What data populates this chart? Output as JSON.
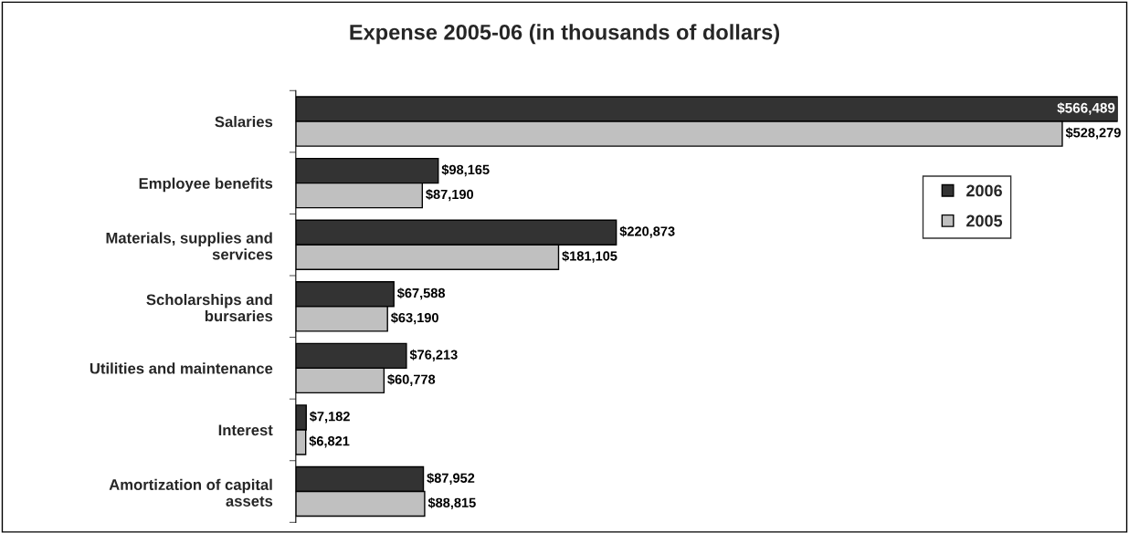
{
  "chart_data": {
    "type": "bar",
    "orientation": "horizontal",
    "title": "Expense 2005-06 (in thousands of dollars)",
    "categories": [
      "Salaries",
      "Employee benefits",
      "Materials, supplies and\nservices",
      "Scholarships and\nbursaries",
      "Utilities and maintenance",
      "Interest",
      "Amortization of capital\nassets"
    ],
    "series": [
      {
        "name": "2006",
        "color": "#333333",
        "values": [
          566489,
          98165,
          220873,
          67588,
          76213,
          7182,
          87952
        ],
        "value_labels": [
          "$566,489",
          "$98,165",
          "$220,873",
          "$67,588",
          "$76,213",
          "$7,182",
          "$87,952"
        ]
      },
      {
        "name": "2005",
        "color": "#c0c0c0",
        "values": [
          528279,
          87190,
          181105,
          63190,
          60778,
          6821,
          88815
        ],
        "value_labels": [
          "$528,279",
          "$87,190",
          "$181,105",
          "$63,190",
          "$60,778",
          "$6,821",
          "$88,815"
        ]
      }
    ],
    "legend": "right",
    "grid": false
  }
}
